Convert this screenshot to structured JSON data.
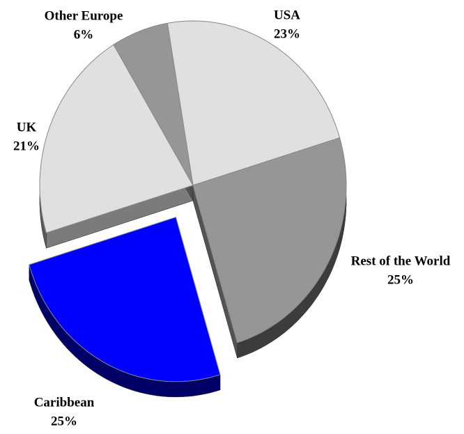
{
  "chart_data": {
    "type": "pie",
    "categories": [
      "USA",
      "Rest of the World",
      "Caribbean",
      "UK",
      "Other Europe"
    ],
    "values": [
      23,
      25,
      25,
      21,
      6
    ],
    "value_labels": [
      "23%",
      "25%",
      "25%",
      "21%",
      "6%"
    ],
    "colors": [
      "#e0e0e0",
      "#969696",
      "#0000ff",
      "#e0e0e0",
      "#969696"
    ],
    "exploded": [
      false,
      false,
      true,
      false,
      false
    ]
  }
}
